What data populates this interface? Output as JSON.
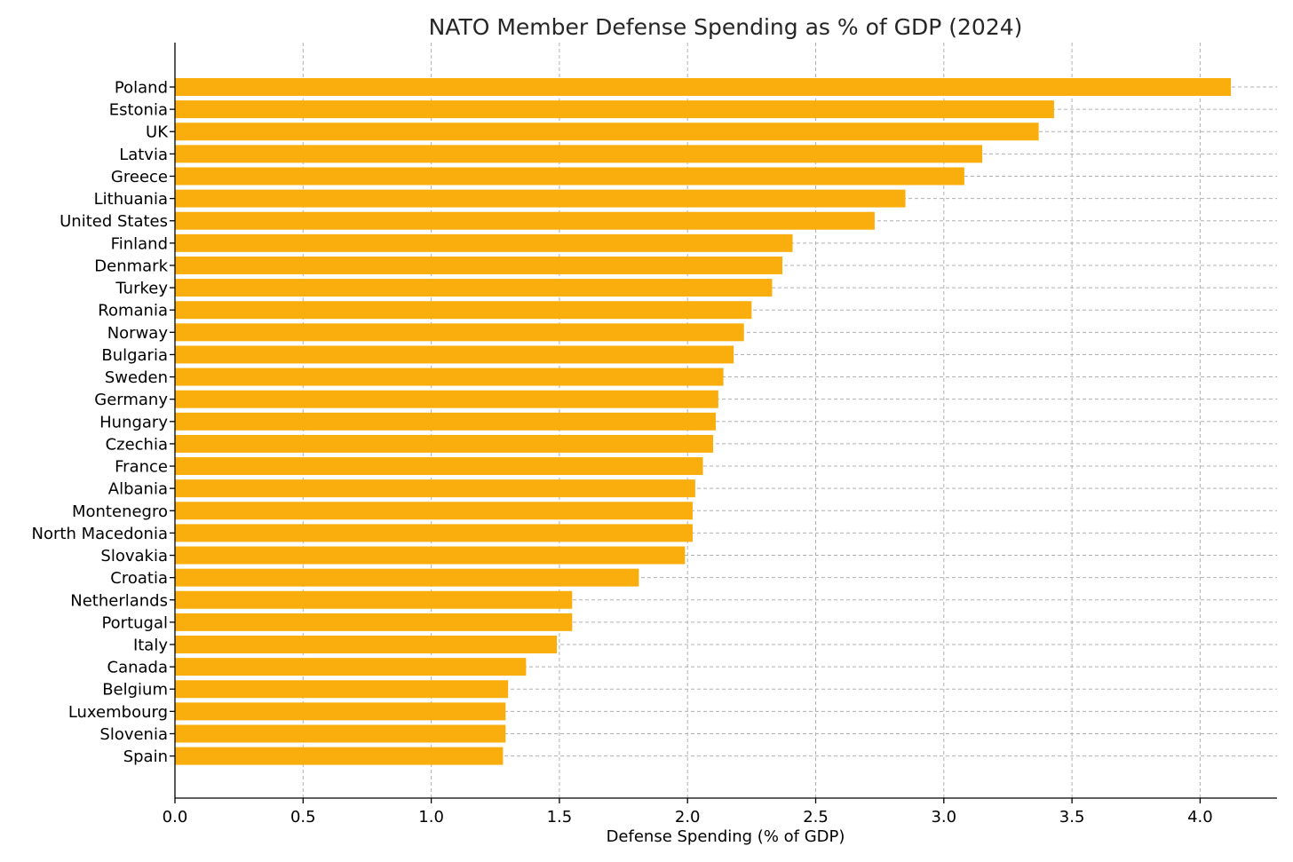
{
  "chart_data": {
    "type": "bar",
    "orientation": "horizontal",
    "title": "NATO Member Defense Spending as % of GDP (2024)",
    "xlabel": "Defense Spending (% of GDP)",
    "ylabel": "",
    "xlim": [
      0,
      4.3
    ],
    "xticks": [
      "0.0",
      "0.5",
      "1.0",
      "1.5",
      "2.0",
      "2.5",
      "3.0",
      "3.5",
      "4.0"
    ],
    "grid": true,
    "bar_color": "#FAAE0E",
    "categories": [
      "Poland",
      "Estonia",
      "UK",
      "Latvia",
      "Greece",
      "Lithuania",
      "United States",
      "Finland",
      "Denmark",
      "Turkey",
      "Romania",
      "Norway",
      "Bulgaria",
      "Sweden",
      "Germany",
      "Hungary",
      "Czechia",
      "France",
      "Albania",
      "Montenegro",
      "North Macedonia",
      "Slovakia",
      "Croatia",
      "Netherlands",
      "Portugal",
      "Italy",
      "Canada",
      "Belgium",
      "Luxembourg",
      "Slovenia",
      "Spain"
    ],
    "values": [
      4.12,
      3.43,
      3.37,
      3.15,
      3.08,
      2.85,
      2.73,
      2.41,
      2.37,
      2.33,
      2.25,
      2.22,
      2.18,
      2.14,
      2.12,
      2.11,
      2.1,
      2.06,
      2.03,
      2.02,
      2.02,
      1.99,
      1.81,
      1.55,
      1.55,
      1.49,
      1.37,
      1.3,
      1.29,
      1.29,
      1.28
    ]
  }
}
